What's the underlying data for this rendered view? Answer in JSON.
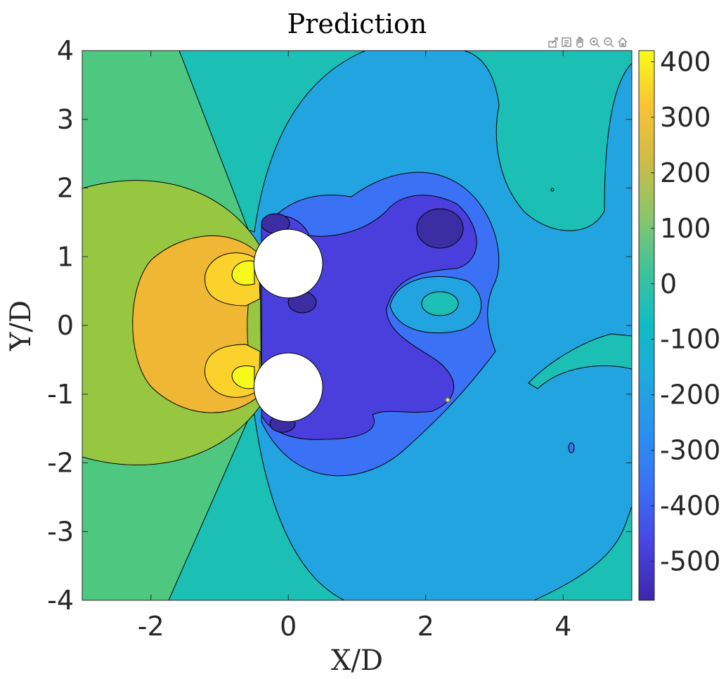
{
  "chart_data": {
    "type": "heatmap",
    "subtype": "filled-contour",
    "title": "Prediction",
    "xlabel": "X/D",
    "ylabel": "Y/D",
    "xlim": [
      -3,
      5
    ],
    "ylim": [
      -4,
      4
    ],
    "xticks": [
      -2,
      0,
      2,
      4
    ],
    "yticks": [
      -4,
      -3,
      -2,
      -1,
      0,
      1,
      2,
      3,
      4
    ],
    "xtick_labels": [
      "-2",
      "0",
      "2",
      "4"
    ],
    "ytick_labels": [
      "-4",
      "-3",
      "-2",
      "-1",
      "0",
      "1",
      "2",
      "3",
      "4"
    ],
    "colorbar": {
      "range": [
        -570,
        420
      ],
      "ticks": [
        400,
        300,
        200,
        100,
        0,
        -100,
        -200,
        -300,
        -400,
        -500
      ],
      "tick_labels": [
        "400",
        "300",
        "200",
        "100",
        "0",
        "-100",
        "-200",
        "-300",
        "-400",
        "-500"
      ],
      "colormap": "parula"
    },
    "contour_levels": [
      -500,
      -400,
      -300,
      -200,
      -100,
      0,
      100,
      200,
      300,
      400
    ],
    "obstacles": [
      {
        "shape": "circle",
        "center": [
          0,
          0.9
        ],
        "radius": 0.5
      },
      {
        "shape": "circle",
        "center": [
          0,
          -0.9
        ],
        "radius": 0.5
      }
    ],
    "grid": false,
    "legend": "none"
  },
  "toolbar": {
    "icons": [
      "export-icon",
      "data-tips-icon",
      "pan-icon",
      "zoom-in-icon",
      "zoom-out-icon",
      "home-icon"
    ]
  },
  "colors": {
    "level_-500": "#3b2ea3",
    "level_-400": "#4a3fdc",
    "level_-300": "#3b71f4",
    "level_-200": "#22a4e1",
    "level_-100": "#1bbfb4",
    "level_0": "#4ec880",
    "level_100": "#97c640",
    "level_200": "#f0b735",
    "level_300": "#fbd22b",
    "level_400": "#f7f81c"
  }
}
